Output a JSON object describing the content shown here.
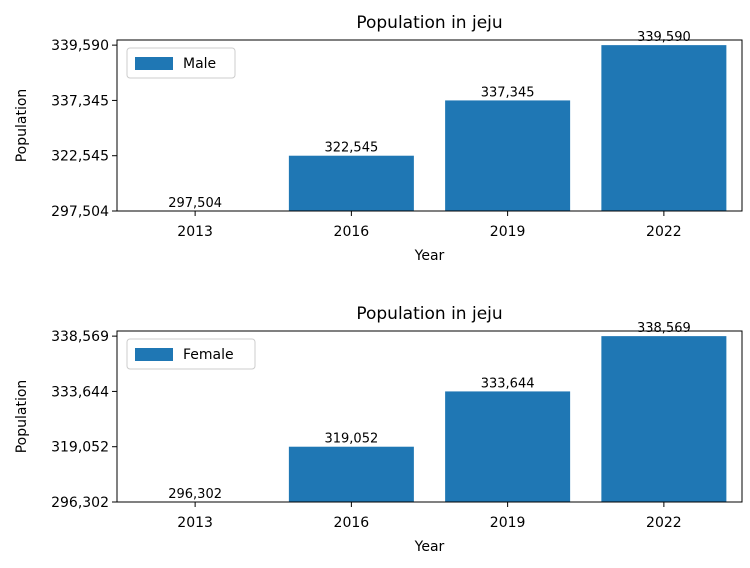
{
  "chart_data": [
    {
      "type": "bar",
      "title": "Population in jeju",
      "xlabel": "Year",
      "ylabel": "Population",
      "categories": [
        "2013",
        "2016",
        "2019",
        "2022"
      ],
      "series": [
        {
          "name": "Male",
          "values": [
            297504,
            322545,
            337345,
            339590
          ],
          "color": "#1f77b4"
        }
      ],
      "value_labels": [
        "297,504",
        "322,545",
        "337,345",
        "339,590"
      ],
      "y_ticks": [
        "297,504",
        "322,545",
        "337,345",
        "339,590"
      ],
      "y_scale": "categorical (ticks at each value)",
      "legend": "top-left",
      "grid": false
    },
    {
      "type": "bar",
      "title": "Population in jeju",
      "xlabel": "Year",
      "ylabel": "Population",
      "categories": [
        "2013",
        "2016",
        "2019",
        "2022"
      ],
      "series": [
        {
          "name": "Female",
          "values": [
            296302,
            319052,
            333644,
            338569
          ],
          "color": "#1f77b4"
        }
      ],
      "value_labels": [
        "296,302",
        "319,052",
        "333,644",
        "338,569"
      ],
      "y_ticks": [
        "296,302",
        "319,052",
        "333,644",
        "338,569"
      ],
      "y_scale": "categorical (ticks at each value)",
      "legend": "top-left",
      "grid": false
    }
  ]
}
